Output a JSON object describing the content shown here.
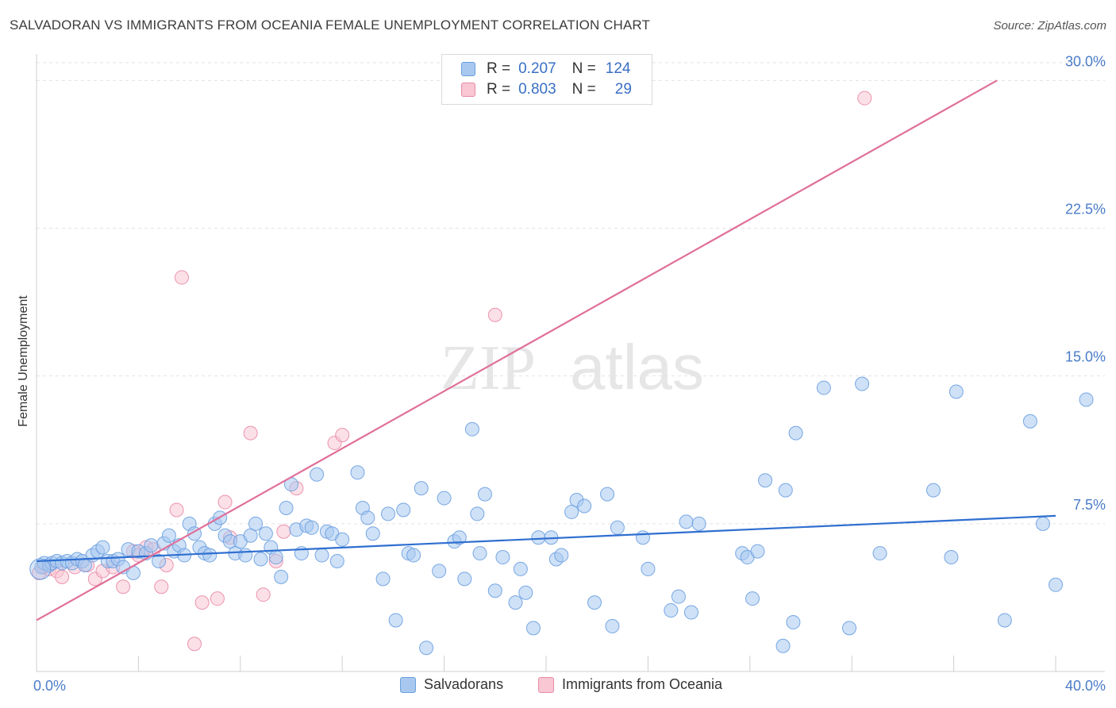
{
  "title": "SALVADORAN VS IMMIGRANTS FROM OCEANIA FEMALE UNEMPLOYMENT CORRELATION CHART",
  "source": "Source: ZipAtlas.com",
  "watermark": {
    "zip": "ZIP",
    "atlas": "atlas"
  },
  "legend": {
    "rows": [
      {
        "r_label": "R =",
        "r_value": "0.207",
        "n_label": "N =",
        "n_value": "124",
        "color": "#a8c8f0",
        "border": "#6a9fe0"
      },
      {
        "r_label": "R =",
        "r_value": "0.803",
        "n_label": "N =",
        "n_value": "29",
        "color": "#f9c6d3",
        "border": "#e88aa6"
      }
    ]
  },
  "bottom_legend": [
    {
      "label": "Salvadorans",
      "color": "#a8c8f0",
      "border": "#6a9fe0"
    },
    {
      "label": "Immigrants from Oceania",
      "color": "#f9c6d3",
      "border": "#e88aa6"
    }
  ],
  "chart_data": {
    "type": "scatter",
    "ylabel": "Female Unemployment",
    "xlim": [
      0,
      40
    ],
    "ylim": [
      0,
      30.9
    ],
    "x_tick_labels": [
      {
        "value": 0,
        "label": "0.0%"
      },
      {
        "value": 40,
        "label": "40.0%"
      }
    ],
    "y_tick_labels": [
      {
        "value": 7.5,
        "label": "7.5%"
      },
      {
        "value": 15.0,
        "label": "15.0%"
      },
      {
        "value": 22.5,
        "label": "22.5%"
      },
      {
        "value": 30.0,
        "label": "30.0%"
      }
    ],
    "grid": "horizontal dashed",
    "colors": {
      "salvadorans": "#6a9fe0",
      "salvadorans_fill": "#a8c8f0",
      "oceania": "#e88aa6",
      "oceania_fill": "#f9c6d3",
      "blue_line": "#2f6fd0",
      "pink_line": "#e0709a"
    },
    "series": [
      {
        "name": "Salvadorans",
        "trend": {
          "x": [
            0,
            40
          ],
          "y": [
            5.6,
            7.9
          ]
        },
        "points": [
          [
            0.2,
            5.3
          ],
          [
            0.3,
            5.5
          ],
          [
            0.5,
            5.4
          ],
          [
            0.6,
            5.5
          ],
          [
            0.8,
            5.6
          ],
          [
            1.0,
            5.5
          ],
          [
            1.2,
            5.6
          ],
          [
            1.4,
            5.5
          ],
          [
            1.6,
            5.7
          ],
          [
            1.8,
            5.6
          ],
          [
            1.9,
            5.4
          ],
          [
            2.2,
            5.9
          ],
          [
            2.4,
            6.1
          ],
          [
            2.6,
            6.3
          ],
          [
            2.8,
            5.6
          ],
          [
            3.0,
            5.6
          ],
          [
            3.2,
            5.7
          ],
          [
            3.4,
            5.3
          ],
          [
            3.6,
            6.2
          ],
          [
            3.8,
            5.0
          ],
          [
            4.0,
            6.1
          ],
          [
            4.3,
            6.0
          ],
          [
            4.5,
            6.4
          ],
          [
            4.8,
            5.6
          ],
          [
            5.0,
            6.5
          ],
          [
            5.2,
            6.9
          ],
          [
            5.4,
            6.1
          ],
          [
            5.6,
            6.4
          ],
          [
            5.8,
            5.9
          ],
          [
            6.0,
            7.5
          ],
          [
            6.2,
            7.0
          ],
          [
            6.4,
            6.3
          ],
          [
            6.6,
            6.0
          ],
          [
            6.8,
            5.9
          ],
          [
            7.0,
            7.5
          ],
          [
            7.2,
            7.8
          ],
          [
            7.4,
            6.9
          ],
          [
            7.6,
            6.6
          ],
          [
            7.8,
            6.0
          ],
          [
            8.0,
            6.6
          ],
          [
            8.2,
            5.9
          ],
          [
            8.4,
            6.9
          ],
          [
            8.6,
            7.5
          ],
          [
            8.8,
            5.7
          ],
          [
            9.0,
            7.0
          ],
          [
            9.2,
            6.3
          ],
          [
            9.4,
            5.8
          ],
          [
            9.6,
            4.8
          ],
          [
            9.8,
            8.3
          ],
          [
            10.0,
            9.5
          ],
          [
            10.2,
            7.2
          ],
          [
            10.4,
            6.0
          ],
          [
            10.6,
            7.4
          ],
          [
            10.8,
            7.3
          ],
          [
            11.0,
            10.0
          ],
          [
            11.2,
            5.9
          ],
          [
            11.4,
            7.1
          ],
          [
            11.6,
            7.0
          ],
          [
            11.8,
            5.6
          ],
          [
            12.0,
            6.7
          ],
          [
            12.6,
            10.1
          ],
          [
            12.8,
            8.3
          ],
          [
            13.0,
            7.8
          ],
          [
            13.2,
            7.0
          ],
          [
            13.6,
            4.7
          ],
          [
            13.8,
            8.0
          ],
          [
            14.1,
            2.6
          ],
          [
            14.4,
            8.2
          ],
          [
            14.6,
            6.0
          ],
          [
            14.8,
            5.9
          ],
          [
            15.1,
            9.3
          ],
          [
            15.3,
            1.2
          ],
          [
            15.8,
            5.1
          ],
          [
            16.0,
            8.8
          ],
          [
            16.4,
            6.6
          ],
          [
            16.6,
            6.8
          ],
          [
            16.8,
            4.7
          ],
          [
            17.1,
            12.3
          ],
          [
            17.3,
            8.0
          ],
          [
            17.4,
            6.0
          ],
          [
            17.6,
            9.0
          ],
          [
            18.0,
            4.1
          ],
          [
            18.3,
            5.8
          ],
          [
            18.8,
            3.5
          ],
          [
            19.0,
            5.2
          ],
          [
            19.2,
            4.0
          ],
          [
            19.5,
            2.2
          ],
          [
            19.7,
            6.8
          ],
          [
            20.2,
            6.8
          ],
          [
            20.4,
            5.7
          ],
          [
            20.6,
            5.9
          ],
          [
            21.0,
            8.1
          ],
          [
            21.2,
            8.7
          ],
          [
            21.5,
            8.4
          ],
          [
            21.9,
            3.5
          ],
          [
            22.4,
            9.0
          ],
          [
            22.6,
            2.3
          ],
          [
            22.8,
            7.3
          ],
          [
            23.8,
            6.8
          ],
          [
            24.0,
            5.2
          ],
          [
            24.9,
            3.1
          ],
          [
            25.2,
            3.8
          ],
          [
            25.5,
            7.6
          ],
          [
            25.7,
            3.0
          ],
          [
            26.0,
            7.5
          ],
          [
            27.7,
            6.0
          ],
          [
            27.9,
            5.8
          ],
          [
            28.1,
            3.7
          ],
          [
            28.3,
            6.1
          ],
          [
            28.6,
            9.7
          ],
          [
            29.3,
            1.3
          ],
          [
            29.4,
            9.2
          ],
          [
            29.7,
            2.5
          ],
          [
            29.8,
            12.1
          ],
          [
            30.9,
            14.4
          ],
          [
            31.9,
            2.2
          ],
          [
            32.4,
            14.6
          ],
          [
            33.1,
            6.0
          ],
          [
            35.2,
            9.2
          ],
          [
            35.9,
            5.8
          ],
          [
            36.1,
            14.2
          ],
          [
            38.0,
            2.6
          ],
          [
            39.0,
            12.7
          ],
          [
            39.5,
            7.5
          ],
          [
            40.0,
            4.4
          ],
          [
            41.2,
            13.8
          ]
        ]
      },
      {
        "name": "Immigrants from Oceania",
        "trend": {
          "x": [
            0,
            37.7
          ],
          "y": [
            2.6,
            30.0
          ]
        },
        "points": [
          [
            0.1,
            5.0
          ],
          [
            0.3,
            5.3
          ],
          [
            0.5,
            5.2
          ],
          [
            0.8,
            5.1
          ],
          [
            1.0,
            4.8
          ],
          [
            1.5,
            5.3
          ],
          [
            2.0,
            5.4
          ],
          [
            2.3,
            4.7
          ],
          [
            2.6,
            5.1
          ],
          [
            3.0,
            5.3
          ],
          [
            3.4,
            4.3
          ],
          [
            3.8,
            6.1
          ],
          [
            4.0,
            5.9
          ],
          [
            4.3,
            6.3
          ],
          [
            4.6,
            6.2
          ],
          [
            4.9,
            4.3
          ],
          [
            5.1,
            5.4
          ],
          [
            5.5,
            8.2
          ],
          [
            5.7,
            20.0
          ],
          [
            6.2,
            1.4
          ],
          [
            6.5,
            3.5
          ],
          [
            7.1,
            3.7
          ],
          [
            7.4,
            8.6
          ],
          [
            7.6,
            6.8
          ],
          [
            8.4,
            12.1
          ],
          [
            8.9,
            3.9
          ],
          [
            9.4,
            5.6
          ],
          [
            9.7,
            7.1
          ],
          [
            10.2,
            9.3
          ],
          [
            11.7,
            11.6
          ],
          [
            12.0,
            12.0
          ],
          [
            18.0,
            18.1
          ],
          [
            32.5,
            29.1
          ]
        ]
      }
    ]
  }
}
